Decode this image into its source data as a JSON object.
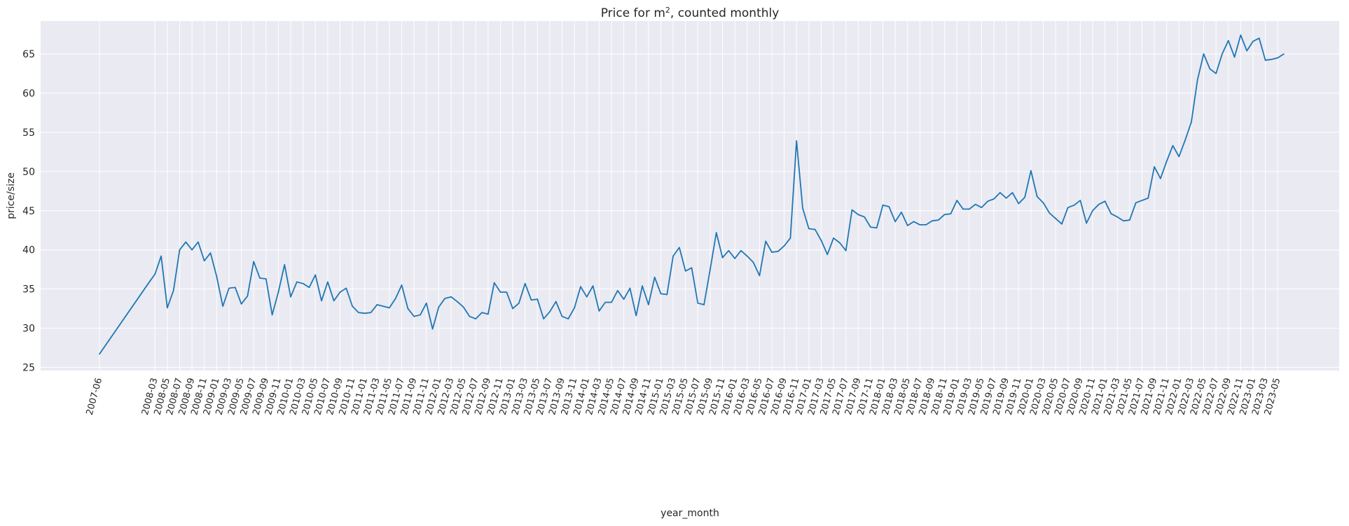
{
  "chart_data": {
    "type": "line",
    "title": "Price for m², counted monthly",
    "title_main": "Price for m",
    "title_sup": "2",
    "title_rest": ", counted monthly",
    "xlabel": "year_month",
    "ylabel": "price/size",
    "ylim": [
      24.6,
      69.2
    ],
    "y_ticks": [
      25,
      30,
      35,
      40,
      45,
      50,
      55,
      60,
      65
    ],
    "grid": true,
    "style": "seaborn darkgrid",
    "line_color": "#1f77b4",
    "background_color": "#eaeaf2",
    "x_tick_labels": [
      "2007-06",
      "2008-03",
      "2008-05",
      "2008-07",
      "2008-09",
      "2008-11",
      "2009-01",
      "2009-03",
      "2009-05",
      "2009-07",
      "2009-09",
      "2009-11",
      "2010-01",
      "2010-03",
      "2010-05",
      "2010-07",
      "2010-09",
      "2010-11",
      "2011-01",
      "2011-03",
      "2011-05",
      "2011-07",
      "2011-09",
      "2011-11",
      "2012-01",
      "2012-03",
      "2012-05",
      "2012-07",
      "2012-09",
      "2012-11",
      "2013-01",
      "2013-03",
      "2013-05",
      "2013-07",
      "2013-09",
      "2013-11",
      "2014-01",
      "2014-03",
      "2014-05",
      "2014-07",
      "2014-09",
      "2014-11",
      "2015-01",
      "2015-03",
      "2015-05",
      "2015-07",
      "2015-09",
      "2015-11",
      "2016-01",
      "2016-03",
      "2016-05",
      "2016-07",
      "2016-09",
      "2016-11",
      "2017-01",
      "2017-03",
      "2017-05",
      "2017-07",
      "2017-09",
      "2017-11",
      "2018-01",
      "2018-03",
      "2018-05",
      "2018-07",
      "2018-09",
      "2018-11",
      "2019-01",
      "2019-03",
      "2019-05",
      "2019-07",
      "2019-09",
      "2019-11",
      "2020-01",
      "2020-03",
      "2020-05",
      "2020-07",
      "2020-09",
      "2020-11",
      "2021-01",
      "2021-03",
      "2021-05",
      "2021-07",
      "2021-09",
      "2021-11",
      "2022-01",
      "2022-03",
      "2022-05",
      "2022-07",
      "2022-09",
      "2022-11",
      "2023-01",
      "2023-03",
      "2023-05"
    ],
    "x": [
      "2007-06",
      "2008-02",
      "2008-03",
      "2008-04",
      "2008-05",
      "2008-06",
      "2008-07",
      "2008-08",
      "2008-09",
      "2008-10",
      "2008-11",
      "2008-12",
      "2009-01",
      "2009-02",
      "2009-03",
      "2009-04",
      "2009-05",
      "2009-06",
      "2009-07",
      "2009-08",
      "2009-09",
      "2009-10",
      "2009-11",
      "2009-12",
      "2010-01",
      "2010-02",
      "2010-03",
      "2010-04",
      "2010-05",
      "2010-06",
      "2010-07",
      "2010-08",
      "2010-09",
      "2010-10",
      "2010-11",
      "2010-12",
      "2011-01",
      "2011-02",
      "2011-03",
      "2011-04",
      "2011-05",
      "2011-06",
      "2011-07",
      "2011-08",
      "2011-09",
      "2011-10",
      "2011-11",
      "2011-12",
      "2012-01",
      "2012-02",
      "2012-03",
      "2012-04",
      "2012-05",
      "2012-06",
      "2012-07",
      "2012-08",
      "2012-09",
      "2012-10",
      "2012-11",
      "2012-12",
      "2013-01",
      "2013-02",
      "2013-03",
      "2013-04",
      "2013-05",
      "2013-06",
      "2013-07",
      "2013-08",
      "2013-09",
      "2013-10",
      "2013-11",
      "2013-12",
      "2014-01",
      "2014-02",
      "2014-03",
      "2014-04",
      "2014-05",
      "2014-06",
      "2014-07",
      "2014-08",
      "2014-09",
      "2014-10",
      "2014-11",
      "2014-12",
      "2015-01",
      "2015-02",
      "2015-03",
      "2015-04",
      "2015-05",
      "2015-06",
      "2015-07",
      "2015-08",
      "2015-09",
      "2015-10",
      "2015-11",
      "2015-12",
      "2016-01",
      "2016-02",
      "2016-03",
      "2016-04",
      "2016-05",
      "2016-06",
      "2016-07",
      "2016-08",
      "2016-09",
      "2016-10",
      "2016-11",
      "2016-12",
      "2017-01",
      "2017-02",
      "2017-03",
      "2017-04",
      "2017-05",
      "2017-06",
      "2017-07",
      "2017-08",
      "2017-09",
      "2017-10",
      "2017-11",
      "2017-12",
      "2018-01",
      "2018-02",
      "2018-03",
      "2018-04",
      "2018-05",
      "2018-06",
      "2018-07",
      "2018-08",
      "2018-09",
      "2018-10",
      "2018-11",
      "2018-12",
      "2019-01",
      "2019-02",
      "2019-03",
      "2019-04",
      "2019-05",
      "2019-06",
      "2019-07",
      "2019-08",
      "2019-09",
      "2019-10",
      "2019-11",
      "2019-12",
      "2020-01",
      "2020-02",
      "2020-03",
      "2020-04",
      "2020-05",
      "2020-06",
      "2020-07",
      "2020-08",
      "2020-09",
      "2020-10",
      "2020-11",
      "2020-12",
      "2021-01",
      "2021-02",
      "2021-03",
      "2021-04",
      "2021-05",
      "2021-06",
      "2021-07",
      "2021-08",
      "2021-09",
      "2021-10",
      "2021-11",
      "2021-12",
      "2022-01",
      "2022-02",
      "2022-03",
      "2022-04",
      "2022-05",
      "2022-06",
      "2022-07",
      "2022-08",
      "2022-09",
      "2022-10",
      "2022-11",
      "2022-12",
      "2023-01",
      "2023-02",
      "2023-03",
      "2023-04",
      "2023-05",
      "2023-06"
    ],
    "series": [
      {
        "values": [
          26.7,
          35.8,
          36.9,
          39.2,
          32.6,
          34.8,
          40.0,
          41.0,
          40.0,
          41.0,
          38.6,
          39.6,
          36.6,
          32.8,
          35.1,
          35.2,
          33.1,
          34.1,
          38.5,
          36.4,
          36.3,
          31.7,
          34.6,
          38.1,
          34.0,
          35.9,
          35.7,
          35.2,
          36.8,
          33.5,
          35.9,
          33.5,
          34.6,
          35.1,
          32.8,
          32.0,
          31.9,
          32.0,
          33.0,
          32.8,
          32.6,
          33.8,
          35.5,
          32.5,
          31.5,
          31.7,
          33.2,
          29.9,
          32.7,
          33.8,
          34.0,
          33.4,
          32.7,
          31.5,
          31.2,
          32.0,
          31.8,
          35.8,
          34.6,
          34.6,
          32.5,
          33.2,
          35.7,
          33.6,
          33.7,
          31.2,
          32.1,
          33.4,
          31.5,
          31.2,
          32.6,
          35.3,
          34.0,
          35.4,
          32.2,
          33.3,
          33.3,
          34.8,
          33.7,
          35.1,
          31.6,
          35.4,
          33.0,
          36.5,
          34.4,
          34.3,
          39.2,
          40.3,
          37.3,
          37.7,
          33.2,
          33.0,
          37.5,
          42.2,
          39.0,
          39.9,
          38.9,
          39.9,
          39.2,
          38.4,
          36.7,
          41.1,
          39.7,
          39.8,
          40.5,
          41.5,
          53.9,
          45.3,
          42.7,
          42.6,
          41.2,
          39.4,
          41.5,
          40.9,
          39.9,
          45.1,
          44.5,
          44.2,
          42.9,
          42.8,
          45.7,
          45.5,
          43.6,
          44.8,
          43.1,
          43.6,
          43.2,
          43.2,
          43.7,
          43.8,
          44.5,
          44.6,
          46.3,
          45.2,
          45.2,
          45.8,
          45.4,
          46.2,
          46.5,
          47.3,
          46.6,
          47.3,
          45.9,
          46.7,
          50.1,
          46.8,
          46.0,
          44.7,
          44.0,
          43.3,
          45.4,
          45.7,
          46.3,
          43.4,
          45.0,
          45.8,
          46.2,
          44.6,
          44.2,
          43.7,
          43.8,
          46.0,
          46.3,
          46.6,
          50.6,
          49.1,
          51.3,
          53.3,
          51.9,
          54.0,
          56.3,
          61.7,
          65.0,
          63.1,
          62.5,
          65.0,
          66.7,
          64.6,
          67.4,
          65.4,
          66.6,
          67.0,
          64.2,
          64.3,
          64.5,
          65.0
        ]
      }
    ]
  }
}
